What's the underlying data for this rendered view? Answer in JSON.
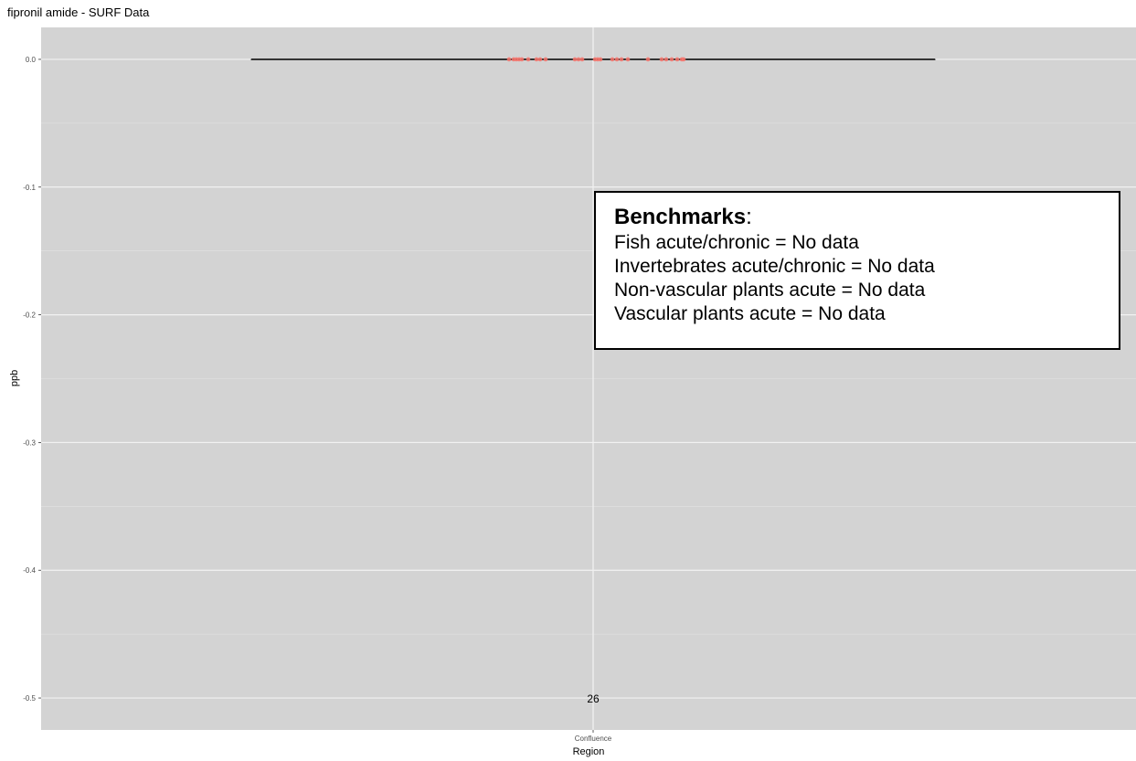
{
  "chart_data": {
    "type": "box",
    "title": "fipronil amide - SURF Data",
    "xlabel": "Region",
    "ylabel": "ppb",
    "categories": [
      "Confluence"
    ],
    "y_ticks": [
      "0.0",
      "-0.1",
      "-0.2",
      "-0.3",
      "-0.4",
      "-0.5"
    ],
    "y_tick_values": [
      0.0,
      -0.1,
      -0.2,
      -0.3,
      -0.4,
      -0.5
    ],
    "ylim": [
      -0.525,
      0.025
    ],
    "grid": true,
    "series": [
      {
        "category": "Confluence",
        "median": 0.0,
        "q1": 0.0,
        "q3": 0.0,
        "whisker_low": 0.0,
        "whisker_high": 0.0,
        "points": [
          0,
          0,
          0,
          0,
          0,
          0,
          0,
          0,
          0,
          0,
          0,
          0,
          0,
          0,
          0,
          0,
          0,
          0,
          0,
          0,
          0,
          0,
          0,
          0,
          0,
          0
        ],
        "n_label": "26",
        "point_color": "#f8766d"
      }
    ]
  },
  "benchmarks": {
    "heading": "Benchmarks",
    "heading_suffix": ":",
    "lines": [
      "Fish acute/chronic = No data",
      "Invertebrates acute/chronic = No data",
      "Non-vascular plants acute = No data",
      "Vascular plants acute = No data"
    ]
  }
}
